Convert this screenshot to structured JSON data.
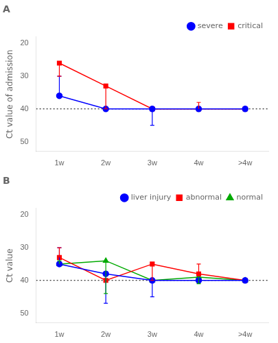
{
  "chart_data": [
    {
      "type": "line",
      "title": "A",
      "y_label": "Ct value of admission",
      "categories": [
        "1w",
        "2w",
        "3w",
        "4w",
        ">4w"
      ],
      "ylim": [
        53,
        18
      ],
      "yticks": [
        20,
        30,
        40,
        50
      ],
      "hline_y": 40,
      "grid": false,
      "legend": "upper right",
      "series": [
        {
          "name": "severe",
          "color": "#0000FF",
          "marker": "circle",
          "values": [
            36,
            40,
            40,
            40,
            40
          ],
          "yerr_low": [
            6,
            0,
            0,
            0,
            0
          ],
          "yerr_high": [
            0,
            0,
            5,
            0,
            0
          ]
        },
        {
          "name": "critical",
          "color": "#FF0000",
          "marker": "square",
          "values": [
            26,
            33,
            40,
            40,
            40
          ],
          "yerr_low": [
            0,
            0,
            0,
            2,
            0
          ],
          "yerr_high": [
            4,
            7,
            0,
            0,
            0
          ]
        }
      ]
    },
    {
      "type": "line",
      "title": "B",
      "y_label": "Ct value",
      "categories": [
        "1w",
        "2w",
        "3w",
        "4w",
        ">4w"
      ],
      "ylim": [
        53,
        18
      ],
      "yticks": [
        20,
        30,
        40,
        50
      ],
      "hline_y": 40,
      "grid": false,
      "legend": "upper right",
      "series": [
        {
          "name": "liver injury",
          "color": "#0000FF",
          "marker": "circle",
          "values": [
            35,
            38,
            40,
            40,
            40
          ],
          "yerr_low": [
            5,
            0,
            0,
            0,
            0
          ],
          "yerr_high": [
            0,
            9,
            5,
            0,
            0
          ]
        },
        {
          "name": "abnormal",
          "color": "#FF0000",
          "marker": "square",
          "values": [
            33,
            40,
            35,
            38,
            40
          ],
          "yerr_low": [
            3,
            0,
            0,
            3,
            0
          ],
          "yerr_high": [
            0,
            0,
            5,
            0,
            0
          ]
        },
        {
          "name": "normal",
          "color": "#00AA00",
          "marker": "triangle",
          "values": [
            35,
            34,
            40,
            39,
            40
          ],
          "yerr_low": [
            1,
            0,
            0,
            0,
            0
          ],
          "yerr_high": [
            0,
            10,
            0,
            2,
            0
          ]
        }
      ]
    }
  ]
}
